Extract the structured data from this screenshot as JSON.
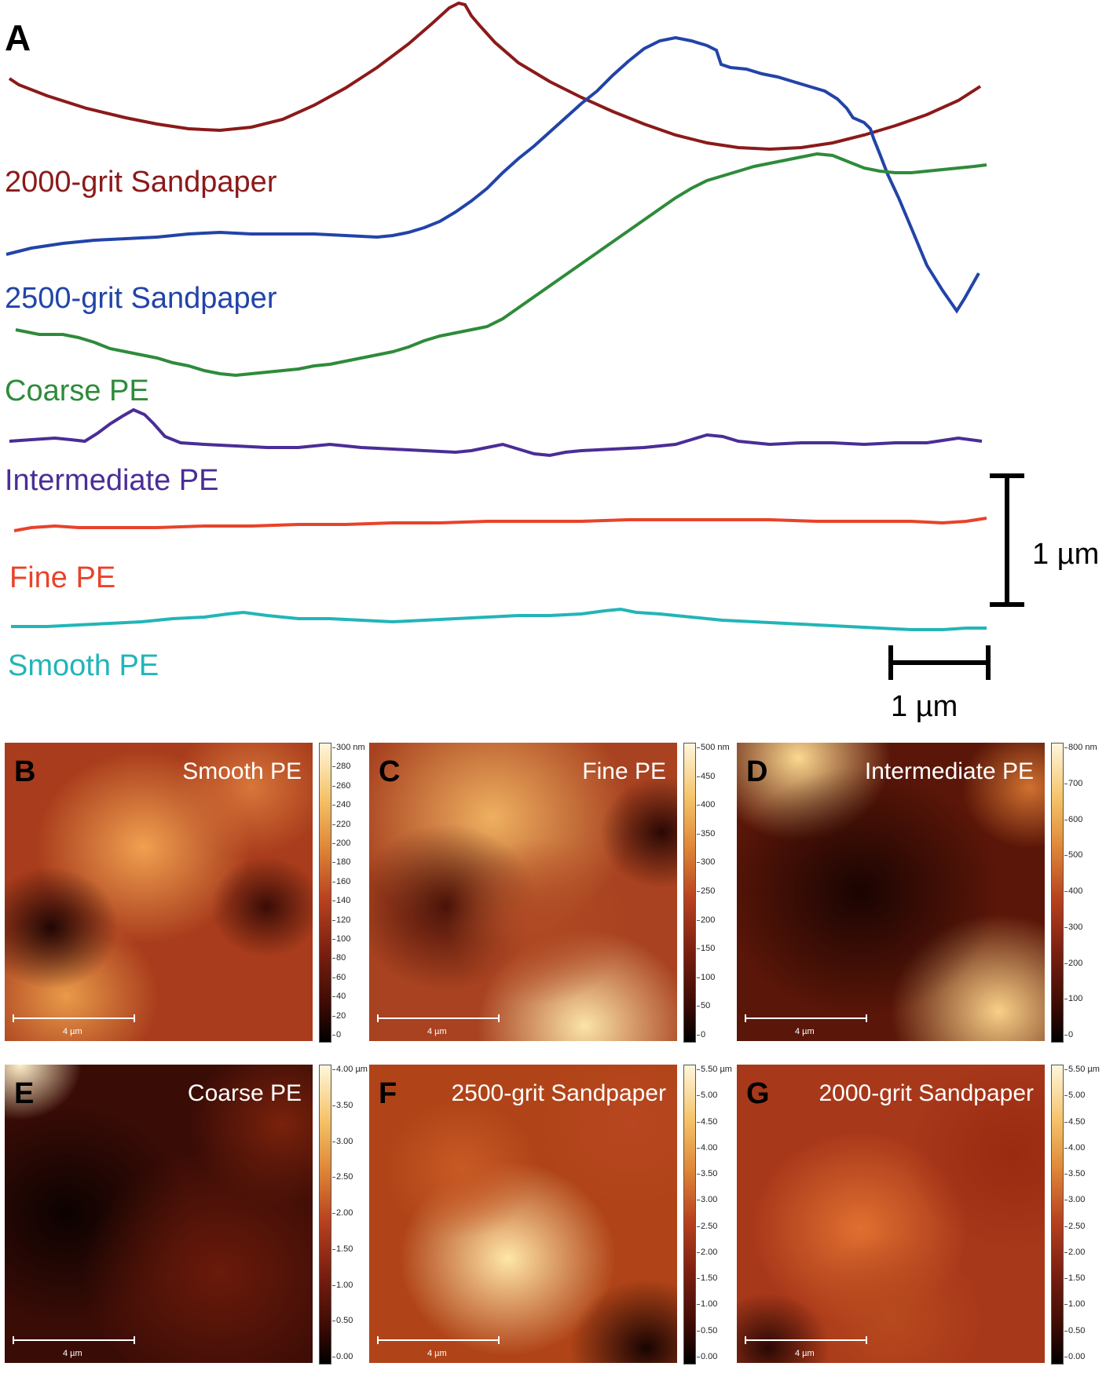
{
  "panel_a": {
    "label": "A",
    "profiles": [
      {
        "name": "2000-grit Sandpaper",
        "color": "#8b1a1a"
      },
      {
        "name": "2500-grit Sandpaper",
        "color": "#2244a8"
      },
      {
        "name": "Coarse PE",
        "color": "#2e8b3a"
      },
      {
        "name": "Intermediate PE",
        "color": "#4b2d96"
      },
      {
        "name": "Fine PE",
        "color": "#e8432a"
      },
      {
        "name": "Smooth PE",
        "color": "#22b5b8"
      }
    ],
    "vertical_scale_label": "1 µm",
    "horizontal_scale_label": "1 µm"
  },
  "afm_panels": [
    {
      "label": "B",
      "name": "Smooth PE",
      "scalebar": "4 µm",
      "colorbar_ticks": [
        "300 nm",
        "280",
        "260",
        "240",
        "220",
        "200",
        "180",
        "160",
        "140",
        "120",
        "100",
        "80",
        "60",
        "40",
        "20",
        "0"
      ]
    },
    {
      "label": "C",
      "name": "Fine PE",
      "scalebar": "4 µm",
      "colorbar_ticks": [
        "500 nm",
        "450",
        "400",
        "350",
        "300",
        "250",
        "200",
        "150",
        "100",
        "50",
        "0"
      ]
    },
    {
      "label": "D",
      "name": "Intermediate PE",
      "scalebar": "4 µm",
      "colorbar_ticks": [
        "800 nm",
        "700",
        "600",
        "500",
        "400",
        "300",
        "200",
        "100",
        "0"
      ]
    },
    {
      "label": "E",
      "name": "Coarse PE",
      "scalebar": "4 µm",
      "colorbar_ticks": [
        "4.00 µm",
        "3.50",
        "3.00",
        "2.50",
        "2.00",
        "1.50",
        "1.00",
        "0.50",
        "0.00"
      ]
    },
    {
      "label": "F",
      "name": "2500-grit Sandpaper",
      "scalebar": "4 µm",
      "colorbar_ticks": [
        "5.50 µm",
        "5.00",
        "4.50",
        "4.00",
        "3.50",
        "3.00",
        "2.50",
        "2.00",
        "1.50",
        "1.00",
        "0.50",
        "0.00"
      ]
    },
    {
      "label": "G",
      "name": "2000-grit Sandpaper",
      "scalebar": "4 µm",
      "colorbar_ticks": [
        "5.50 µm",
        "5.00",
        "4.50",
        "4.00",
        "3.50",
        "3.00",
        "2.50",
        "2.00",
        "1.50",
        "1.00",
        "0.50",
        "0.00"
      ]
    }
  ]
}
